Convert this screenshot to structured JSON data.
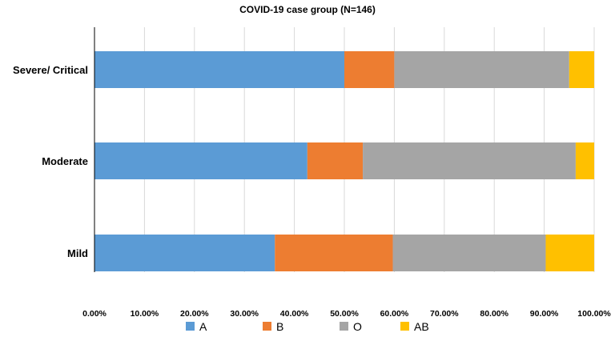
{
  "chart_data": {
    "type": "bar",
    "orientation": "horizontal",
    "stacked": true,
    "title": "COVID-19 case group (N=146)",
    "xlabel": "",
    "ylabel": "",
    "xlim": [
      0,
      100
    ],
    "ticks": [
      "0.00%",
      "10.00%",
      "20.00%",
      "30.00%",
      "40.00%",
      "50.00%",
      "60.00%",
      "70.00%",
      "80.00%",
      "90.00%",
      "100.00%"
    ],
    "grid": true,
    "legend_position": "bottom",
    "categories": [
      "Severe/ Critical",
      "Moderate",
      "Mild"
    ],
    "series": [
      {
        "name": "A",
        "color": "#5B9BD5",
        "values": [
          50.0,
          42.6,
          36.1
        ]
      },
      {
        "name": "B",
        "color": "#ED7D31",
        "values": [
          10.0,
          11.1,
          23.6
        ]
      },
      {
        "name": "O",
        "color": "#A5A5A5",
        "values": [
          35.0,
          42.6,
          30.6
        ]
      },
      {
        "name": "AB",
        "color": "#FFC000",
        "values": [
          5.0,
          3.7,
          9.7
        ]
      }
    ]
  }
}
